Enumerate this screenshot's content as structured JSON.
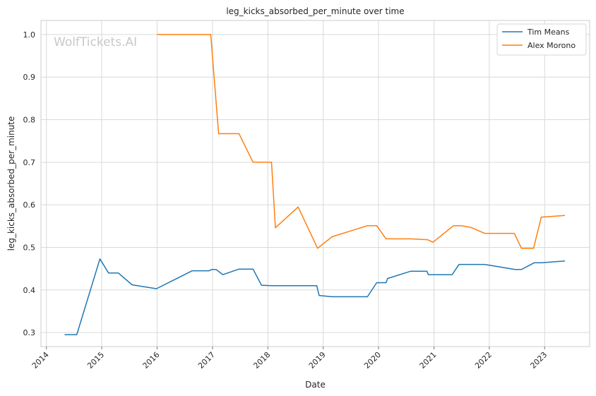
{
  "chart_data": {
    "type": "line",
    "title": "leg_kicks_absorbed_per_minute over time",
    "xlabel": "Date",
    "ylabel": "leg_kicks_absorbed_per_minute",
    "watermark": "WolfTickets.AI",
    "x_ticks": [
      "2014",
      "2015",
      "2016",
      "2017",
      "2018",
      "2019",
      "2020",
      "2021",
      "2022",
      "2023"
    ],
    "y_ticks": [
      "0.3",
      "0.4",
      "0.5",
      "0.6",
      "0.7",
      "0.8",
      "0.9",
      "1.0"
    ],
    "xlim": [
      "2013-11-26",
      "2023-10-25"
    ],
    "ylim": [
      0.267,
      1.033
    ],
    "grid": true,
    "legend_position": "top-right",
    "colors": {
      "Tim Means": "#1f77b4",
      "Alex Morono": "#ff7f0e",
      "grid": "#d9d9d9",
      "axes": "#cccccc"
    },
    "series": [
      {
        "name": "Tim Means",
        "points": [
          [
            "2014-05-01",
            0.295
          ],
          [
            "2014-07-20",
            0.295
          ],
          [
            "2014-12-20",
            0.473
          ],
          [
            "2015-02-15",
            0.44
          ],
          [
            "2015-04-20",
            0.44
          ],
          [
            "2015-07-20",
            0.412
          ],
          [
            "2015-12-28",
            0.403
          ],
          [
            "2016-08-20",
            0.445
          ],
          [
            "2016-12-10",
            0.445
          ],
          [
            "2016-12-25",
            0.448
          ],
          [
            "2017-01-25",
            0.448
          ],
          [
            "2017-03-10",
            0.436
          ],
          [
            "2017-06-25",
            0.449
          ],
          [
            "2017-09-25",
            0.449
          ],
          [
            "2017-11-20",
            0.411
          ],
          [
            "2018-02-01",
            0.41
          ],
          [
            "2018-11-20",
            0.41
          ],
          [
            "2018-12-05",
            0.387
          ],
          [
            "2019-03-01",
            0.384
          ],
          [
            "2019-10-20",
            0.384
          ],
          [
            "2019-12-20",
            0.417
          ],
          [
            "2020-02-20",
            0.417
          ],
          [
            "2020-03-01",
            0.427
          ],
          [
            "2020-08-01",
            0.444
          ],
          [
            "2020-11-15",
            0.444
          ],
          [
            "2020-11-25",
            0.436
          ],
          [
            "2021-05-01",
            0.436
          ],
          [
            "2021-06-15",
            0.46
          ],
          [
            "2021-12-01",
            0.46
          ],
          [
            "2022-06-20",
            0.448
          ],
          [
            "2022-08-01",
            0.448
          ],
          [
            "2022-10-25",
            0.464
          ],
          [
            "2022-12-10",
            0.464
          ],
          [
            "2023-05-15",
            0.468
          ]
        ]
      },
      {
        "name": "Alex Morono",
        "points": [
          [
            "2016-01-01",
            1.0
          ],
          [
            "2016-12-20",
            1.0
          ],
          [
            "2017-02-10",
            0.767
          ],
          [
            "2017-06-25",
            0.767
          ],
          [
            "2017-09-25",
            0.7
          ],
          [
            "2018-01-25",
            0.7
          ],
          [
            "2018-02-20",
            0.546
          ],
          [
            "2018-07-20",
            0.595
          ],
          [
            "2018-11-25",
            0.498
          ],
          [
            "2019-03-01",
            0.525
          ],
          [
            "2019-10-20",
            0.551
          ],
          [
            "2019-12-20",
            0.551
          ],
          [
            "2020-02-20",
            0.52
          ],
          [
            "2020-08-01",
            0.52
          ],
          [
            "2020-11-20",
            0.518
          ],
          [
            "2020-12-25",
            0.512
          ],
          [
            "2021-05-10",
            0.551
          ],
          [
            "2021-07-01",
            0.551
          ],
          [
            "2021-09-01",
            0.547
          ],
          [
            "2021-12-01",
            0.533
          ],
          [
            "2022-06-15",
            0.533
          ],
          [
            "2022-08-01",
            0.498
          ],
          [
            "2022-10-20",
            0.498
          ],
          [
            "2022-12-10",
            0.571
          ],
          [
            "2023-05-15",
            0.575
          ]
        ]
      }
    ]
  }
}
